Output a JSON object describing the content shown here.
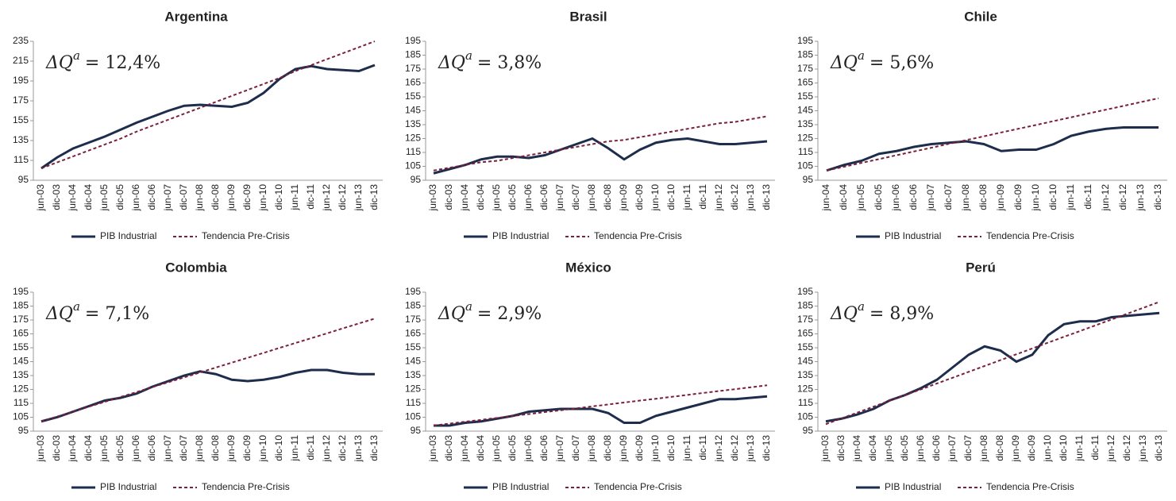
{
  "chart_data": [
    {
      "type": "line",
      "title": "Argentina",
      "annotation_symbol": "ΔQ",
      "annotation_superscript": "a",
      "annotation_value": "= 12,4%",
      "categories": [
        "jun-03",
        "dic-03",
        "jun-04",
        "dic-04",
        "jun-05",
        "dic-05",
        "jun-06",
        "dic-06",
        "jun-07",
        "dic-07",
        "jun-08",
        "dic-08",
        "jun-09",
        "dic-09",
        "jun-10",
        "dic-10",
        "jun-11",
        "dic-11",
        "jun-12",
        "dic-12",
        "jun-13",
        "dic-13"
      ],
      "series": [
        {
          "name": "PIB Industrial",
          "color": "#1f2d4d",
          "dashed": false,
          "values": [
            107,
            118,
            127,
            133,
            139,
            146,
            153,
            159,
            165,
            170,
            171,
            170,
            169,
            173,
            183,
            197,
            207,
            210,
            207,
            206,
            205,
            211
          ]
        },
        {
          "name": "Tendencia Pre-Crisis",
          "color": "#7b1f3a",
          "dashed": true,
          "values": [
            107,
            113,
            119,
            125,
            131,
            137,
            144,
            150,
            156,
            162,
            168,
            174,
            180,
            186,
            192,
            198,
            205,
            211,
            217,
            223,
            229,
            235
          ]
        }
      ],
      "ylim": [
        95,
        235
      ],
      "yticks": [
        95,
        115,
        135,
        155,
        175,
        195,
        215,
        235
      ],
      "grid": false,
      "legend": "bottom"
    },
    {
      "type": "line",
      "title": "Brasil",
      "annotation_symbol": "ΔQ",
      "annotation_superscript": "a",
      "annotation_value": "= 3,8%",
      "categories": [
        "jun-03",
        "dic-03",
        "jun-04",
        "dic-04",
        "jun-05",
        "dic-05",
        "jun-06",
        "dic-06",
        "jun-07",
        "dic-07",
        "jun-08",
        "dic-08",
        "jun-09",
        "dic-09",
        "jun-10",
        "dic-10",
        "jun-11",
        "dic-11",
        "jun-12",
        "dic-12",
        "jun-13",
        "dic-13"
      ],
      "series": [
        {
          "name": "PIB Industrial",
          "color": "#1f2d4d",
          "dashed": false,
          "values": [
            100,
            103,
            106,
            110,
            112,
            112,
            111,
            113,
            117,
            121,
            125,
            118,
            110,
            117,
            122,
            124,
            125,
            123,
            121,
            121,
            122,
            123
          ]
        },
        {
          "name": "Tendencia Pre-Crisis",
          "color": "#7b1f3a",
          "dashed": true,
          "values": [
            102,
            104,
            106,
            108,
            109,
            111,
            113,
            115,
            117,
            119,
            121,
            123,
            124,
            126,
            128,
            130,
            132,
            134,
            136,
            137,
            139,
            141
          ]
        }
      ],
      "ylim": [
        95,
        195
      ],
      "yticks": [
        95,
        105,
        115,
        125,
        135,
        145,
        155,
        165,
        175,
        185,
        195
      ],
      "grid": false,
      "legend": "bottom"
    },
    {
      "type": "line",
      "title": "Chile",
      "annotation_symbol": "ΔQ",
      "annotation_superscript": "a",
      "annotation_value": "= 5,6%",
      "categories": [
        "jun-04",
        "dic-04",
        "jun-05",
        "dic-05",
        "jun-06",
        "dic-06",
        "jun-07",
        "dic-07",
        "jun-08",
        "dic-08",
        "jun-09",
        "dic-09",
        "jun-10",
        "dic-10",
        "jun-11",
        "dic-11",
        "jun-12",
        "dic-12",
        "jun-13",
        "dic-13"
      ],
      "series": [
        {
          "name": "PIB Industrial",
          "color": "#1f2d4d",
          "dashed": false,
          "values": [
            102,
            106,
            109,
            114,
            116,
            119,
            121,
            122,
            123,
            121,
            116,
            117,
            117,
            121,
            127,
            130,
            132,
            133,
            133,
            133
          ]
        },
        {
          "name": "Tendencia Pre-Crisis",
          "color": "#7b1f3a",
          "dashed": true,
          "values": [
            102,
            104.7,
            107.5,
            110.2,
            113,
            115.7,
            118.4,
            121.2,
            123.9,
            126.6,
            129.4,
            132.1,
            134.8,
            137.6,
            140.3,
            143.1,
            145.8,
            148.5,
            151.3,
            154
          ]
        }
      ],
      "ylim": [
        95,
        195
      ],
      "yticks": [
        95,
        105,
        115,
        125,
        135,
        145,
        155,
        165,
        175,
        185,
        195
      ],
      "grid": false,
      "legend": "bottom"
    },
    {
      "type": "line",
      "title": "Colombia",
      "annotation_symbol": "ΔQ",
      "annotation_superscript": "a",
      "annotation_value": "= 7,1%",
      "categories": [
        "jun-03",
        "dic-03",
        "jun-04",
        "dic-04",
        "jun-05",
        "dic-05",
        "jun-06",
        "dic-06",
        "jun-07",
        "dic-07",
        "jun-08",
        "dic-08",
        "jun-09",
        "dic-09",
        "jun-10",
        "dic-10",
        "jun-11",
        "dic-11",
        "jun-12",
        "dic-12",
        "jun-13",
        "dic-13"
      ],
      "series": [
        {
          "name": "PIB Industrial",
          "color": "#1f2d4d",
          "dashed": false,
          "values": [
            102,
            105,
            109,
            113,
            117,
            119,
            122,
            127,
            131,
            135,
            138,
            136,
            132,
            131,
            132,
            134,
            137,
            139,
            139,
            137,
            136,
            136
          ]
        },
        {
          "name": "Tendencia Pre-Crisis",
          "color": "#7b1f3a",
          "dashed": true,
          "values": [
            102,
            105.5,
            109,
            112.6,
            116.1,
            119.6,
            123.1,
            126.7,
            130.2,
            133.7,
            137.2,
            140.8,
            144.3,
            147.8,
            151.3,
            154.9,
            158.4,
            161.9,
            165.4,
            169,
            172.5,
            176
          ]
        }
      ],
      "ylim": [
        95,
        195
      ],
      "yticks": [
        95,
        105,
        115,
        125,
        135,
        145,
        155,
        165,
        175,
        185,
        195
      ],
      "grid": false,
      "legend": "bottom"
    },
    {
      "type": "line",
      "title": "México",
      "annotation_symbol": "ΔQ",
      "annotation_superscript": "a",
      "annotation_value": "= 2,9%",
      "categories": [
        "jun-03",
        "dic-03",
        "jun-04",
        "dic-04",
        "jun-05",
        "dic-05",
        "jun-06",
        "dic-06",
        "jun-07",
        "dic-07",
        "jun-08",
        "dic-08",
        "jun-09",
        "dic-09",
        "jun-10",
        "dic-10",
        "jun-11",
        "dic-11",
        "jun-12",
        "dic-12",
        "jun-13",
        "dic-13"
      ],
      "series": [
        {
          "name": "PIB Industrial",
          "color": "#1f2d4d",
          "dashed": false,
          "values": [
            99,
            99,
            101,
            102,
            104,
            106,
            109,
            110,
            111,
            111,
            111,
            108,
            101,
            101,
            106,
            109,
            112,
            115,
            118,
            118,
            119,
            120
          ]
        },
        {
          "name": "Tendencia Pre-Crisis",
          "color": "#7b1f3a",
          "dashed": true,
          "values": [
            99,
            100.4,
            101.8,
            103.1,
            104.5,
            105.9,
            107.3,
            108.7,
            110,
            111.4,
            112.8,
            114.2,
            115.6,
            117,
            118.3,
            119.7,
            121.1,
            122.5,
            123.9,
            125.2,
            126.6,
            128
          ]
        }
      ],
      "ylim": [
        95,
        195
      ],
      "yticks": [
        95,
        105,
        115,
        125,
        135,
        145,
        155,
        165,
        175,
        185,
        195
      ],
      "grid": false,
      "legend": "bottom"
    },
    {
      "type": "line",
      "title": "Perú",
      "annotation_symbol": "ΔQ",
      "annotation_superscript": "a",
      "annotation_value": "= 8,9%",
      "categories": [
        "jun-03",
        "dic-03",
        "jun-04",
        "dic-04",
        "jun-05",
        "dic-05",
        "jun-06",
        "dic-06",
        "jun-07",
        "dic-07",
        "jun-08",
        "dic-08",
        "jun-09",
        "dic-09",
        "jun-10",
        "dic-10",
        "jun-11",
        "dic-11",
        "jun-12",
        "dic-12",
        "jun-13",
        "dic-13"
      ],
      "series": [
        {
          "name": "PIB Industrial",
          "color": "#1f2d4d",
          "dashed": false,
          "values": [
            102,
            104,
            107,
            111,
            117,
            121,
            126,
            132,
            141,
            150,
            156,
            153,
            145,
            150,
            164,
            172,
            174,
            174,
            177,
            178,
            179,
            180
          ]
        },
        {
          "name": "Tendencia Pre-Crisis",
          "color": "#7b1f3a",
          "dashed": true,
          "values": [
            100,
            104.2,
            108.4,
            112.6,
            116.8,
            121,
            125.1,
            129.3,
            133.5,
            137.7,
            141.9,
            146.1,
            150.3,
            154.5,
            158.7,
            162.9,
            167,
            171.2,
            175.4,
            179.6,
            183.8,
            188
          ]
        }
      ],
      "ylim": [
        95,
        195
      ],
      "yticks": [
        95,
        105,
        115,
        125,
        135,
        145,
        155,
        165,
        175,
        185,
        195
      ],
      "grid": false,
      "legend": "bottom"
    }
  ]
}
